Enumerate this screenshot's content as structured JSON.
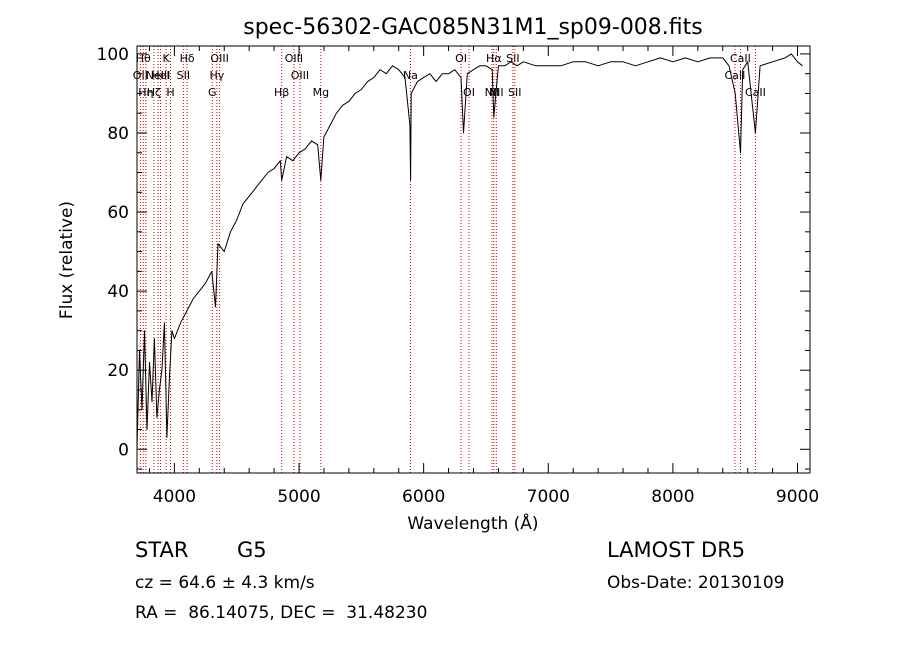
{
  "chart_data": {
    "type": "line",
    "title": "spec-56302-GAC085N31M1_sp09-008.fits",
    "xlabel": "Wavelength (Å)",
    "ylabel": "Flux (relative)",
    "xlim": [
      3700,
      9100
    ],
    "ylim": [
      -6,
      102
    ],
    "xticks": [
      4000,
      5000,
      6000,
      7000,
      8000,
      9000
    ],
    "yticks": [
      0,
      20,
      40,
      60,
      80,
      100
    ],
    "grid": false,
    "series": [
      {
        "color": "#000000",
        "x": [
          3700,
          3720,
          3740,
          3760,
          3780,
          3800,
          3820,
          3840,
          3860,
          3880,
          3900,
          3920,
          3940,
          3960,
          3980,
          4000,
          4050,
          4100,
          4150,
          4200,
          4250,
          4300,
          4330,
          4350,
          4400,
          4450,
          4500,
          4550,
          4600,
          4650,
          4700,
          4750,
          4800,
          4850,
          4861,
          4900,
          4950,
          5000,
          5050,
          5100,
          5150,
          5175,
          5200,
          5250,
          5300,
          5350,
          5400,
          5450,
          5500,
          5550,
          5600,
          5650,
          5700,
          5750,
          5800,
          5850,
          5890,
          5895,
          5900,
          5950,
          6000,
          6050,
          6100,
          6150,
          6200,
          6250,
          6300,
          6320,
          6350,
          6400,
          6450,
          6500,
          6550,
          6563,
          6600,
          6650,
          6700,
          6750,
          6800,
          6900,
          7000,
          7100,
          7200,
          7300,
          7400,
          7500,
          7600,
          7700,
          7800,
          7900,
          8000,
          8100,
          8200,
          8300,
          8400,
          8450,
          8500,
          8542,
          8560,
          8600,
          8662,
          8700,
          8800,
          8900,
          8950,
          9000,
          9040
        ],
        "y": [
          0,
          25,
          10,
          30,
          5,
          22,
          12,
          28,
          8,
          15,
          20,
          32,
          3,
          18,
          30,
          28,
          32,
          35,
          38,
          40,
          42,
          45,
          36,
          52,
          50,
          55,
          58,
          62,
          64,
          66,
          68,
          70,
          71,
          73,
          68,
          74,
          73,
          75,
          76,
          78,
          77,
          68,
          79,
          82,
          85,
          87,
          88,
          90,
          91,
          93,
          94,
          96,
          95,
          97,
          96,
          94,
          82,
          68,
          90,
          93,
          94,
          95,
          93,
          95,
          95,
          96,
          94,
          80,
          95,
          96,
          97,
          97,
          96,
          84,
          97,
          97,
          98,
          97,
          98,
          97,
          97,
          97,
          98,
          98,
          97,
          98,
          98,
          97,
          98,
          99,
          98,
          99,
          98,
          99,
          99,
          97,
          90,
          75,
          96,
          98,
          80,
          97,
          98,
          99,
          100,
          98,
          97
        ]
      }
    ],
    "lines": [
      {
        "w": 3727,
        "label": "OII",
        "row": 2
      },
      {
        "w": 3750,
        "label": "Hθ",
        "row": 1
      },
      {
        "w": 3771,
        "label": "Hη",
        "row": 3
      },
      {
        "w": 3835,
        "label": "Hζ",
        "row": 3
      },
      {
        "w": 3869,
        "label": "NeIII",
        "row": 2
      },
      {
        "w": 3889,
        "label": "HeI",
        "row": 2
      },
      {
        "w": 3934,
        "label": "K",
        "row": 1
      },
      {
        "w": 3969,
        "label": "H",
        "row": 3
      },
      {
        "w": 4072,
        "label": "SII",
        "row": 2
      },
      {
        "w": 4102,
        "label": "Hδ",
        "row": 1
      },
      {
        "w": 4304,
        "label": "G",
        "row": 3
      },
      {
        "w": 4341,
        "label": "Hγ",
        "row": 2
      },
      {
        "w": 4363,
        "label": "OIII",
        "row": 1
      },
      {
        "w": 4861,
        "label": "Hβ",
        "row": 3
      },
      {
        "w": 4959,
        "label": "OIII",
        "row": 1
      },
      {
        "w": 5007,
        "label": "OIII",
        "row": 2
      },
      {
        "w": 5175,
        "label": "Mg",
        "row": 3
      },
      {
        "w": 5894,
        "label": "Na",
        "row": 2
      },
      {
        "w": 6300,
        "label": "OI",
        "row": 1
      },
      {
        "w": 6364,
        "label": "OI",
        "row": 3
      },
      {
        "w": 6548,
        "label": "NII",
        "row": 3
      },
      {
        "w": 6563,
        "label": "Hα",
        "row": 1
      },
      {
        "w": 6583,
        "label": "NII",
        "row": 3
      },
      {
        "w": 6716,
        "label": "SII",
        "row": 1
      },
      {
        "w": 6731,
        "label": "SII",
        "row": 3
      },
      {
        "w": 8498,
        "label": "CaII",
        "row": 2
      },
      {
        "w": 8542,
        "label": "CaII",
        "row": 1
      },
      {
        "w": 8662,
        "label": "CaII",
        "row": 3
      }
    ]
  },
  "info": {
    "object_class": "STAR",
    "subclass": "G5",
    "survey": "LAMOST DR5",
    "cz": "cz = 64.6 ± 4.3 km/s",
    "obs_date": "Obs-Date: 20130109",
    "ra_dec": "RA =  86.14075, DEC =  31.48230"
  }
}
